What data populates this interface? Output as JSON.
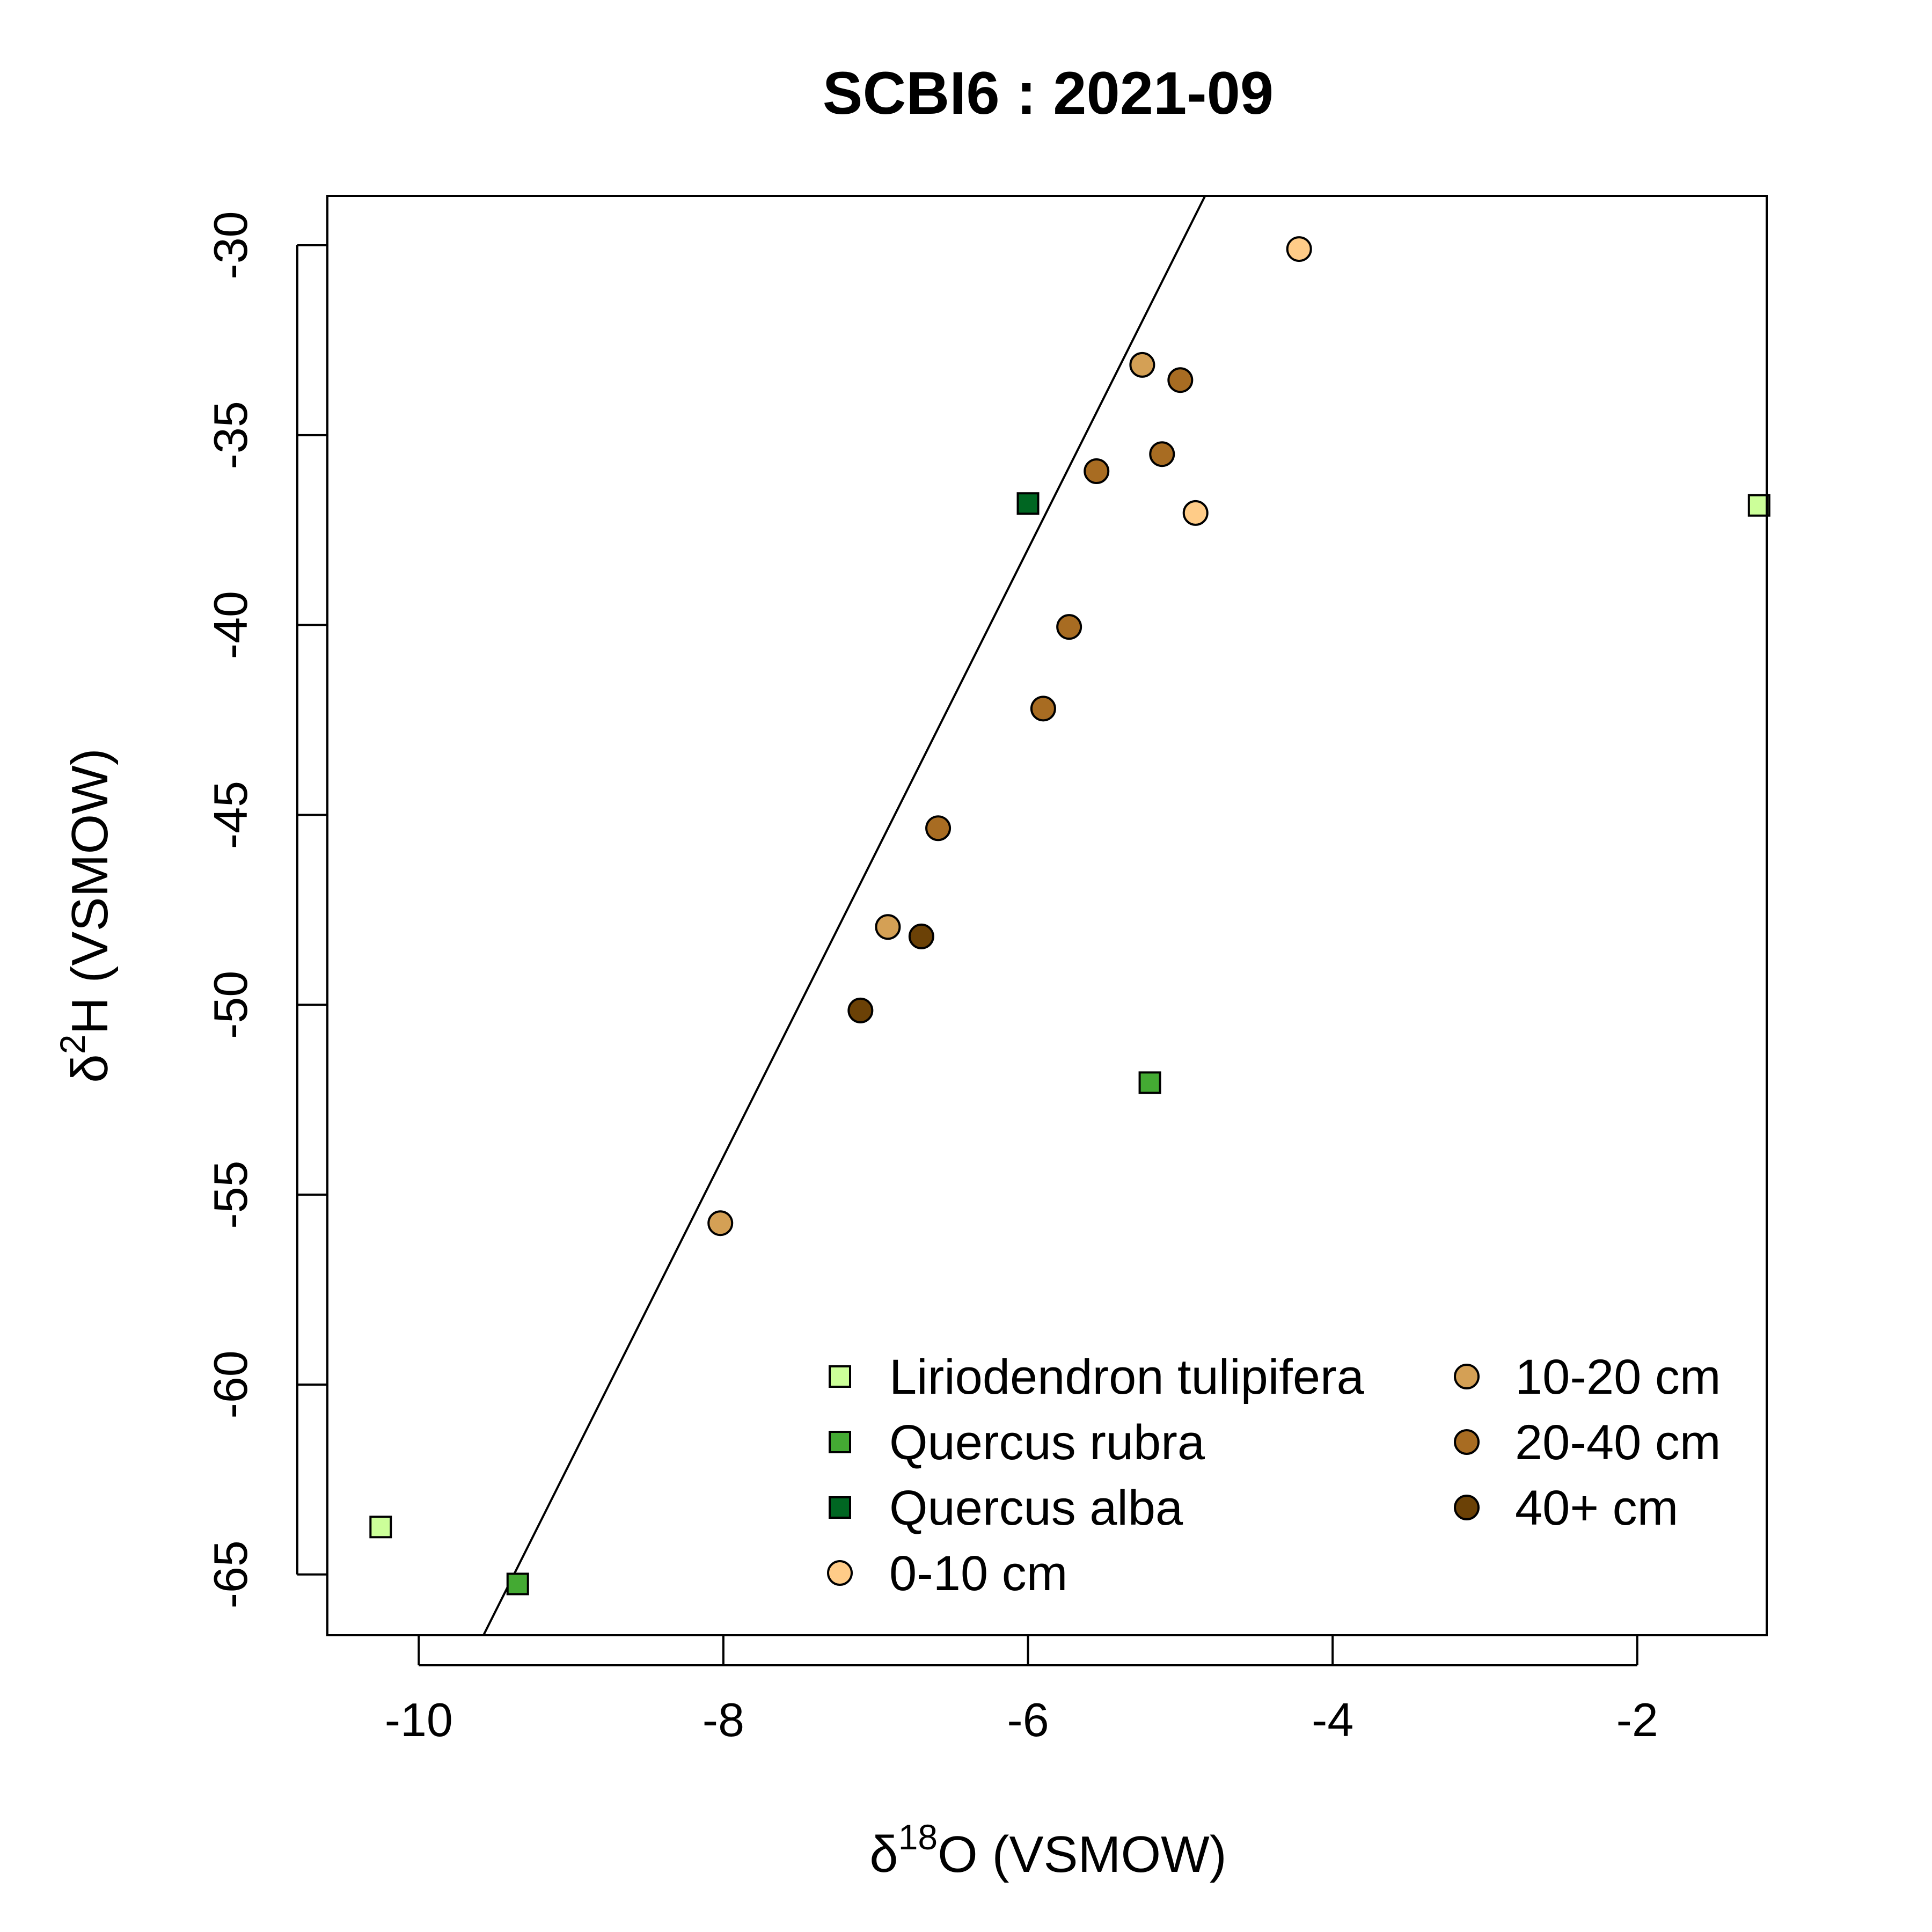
{
  "chart_data": {
    "type": "scatter",
    "title": "SCBI6 : 2021-09",
    "xlabel": {
      "prefix": "δ",
      "sup": "18",
      "rest": "O (VSMOW)"
    },
    "ylabel": {
      "prefix": "δ",
      "sup": "2",
      "rest": "H (VSMOW)"
    },
    "xlim": [
      -10.6,
      -1.15
    ],
    "ylim": [
      -66.6,
      -28.7
    ],
    "xticks": [
      -10,
      -8,
      -6,
      -4,
      -2
    ],
    "yticks": [
      -30,
      -35,
      -40,
      -45,
      -50,
      -55,
      -60,
      -65
    ],
    "grid": false,
    "legend_position": "bottom-right",
    "reference_line": {
      "slope": 8,
      "intercept": 10
    },
    "series": [
      {
        "name": "Liriodendron tulipifera",
        "shape": "square",
        "color": "#ccff99",
        "points": [
          [
            -10.25,
            -63.75
          ],
          [
            -1.2,
            -36.85
          ]
        ]
      },
      {
        "name": "Quercus rubra",
        "shape": "square",
        "color": "#44aa33",
        "points": [
          [
            -9.35,
            -65.25
          ],
          [
            -5.2,
            -52.05
          ]
        ]
      },
      {
        "name": "Quercus alba",
        "shape": "square",
        "color": "#006622",
        "points": [
          [
            -6.0,
            -36.8
          ]
        ]
      },
      {
        "name": "0-10 cm",
        "shape": "circle",
        "color": "#ffcc88",
        "points": [
          [
            -4.22,
            -30.1
          ],
          [
            -4.9,
            -37.05
          ]
        ]
      },
      {
        "name": "10-20 cm",
        "shape": "circle",
        "color": "#d4a055",
        "points": [
          [
            -5.25,
            -33.15
          ],
          [
            -6.92,
            -47.95
          ],
          [
            -8.02,
            -55.75
          ]
        ]
      },
      {
        "name": "20-40 cm",
        "shape": "circle",
        "color": "#a86c22",
        "points": [
          [
            -5.0,
            -33.55
          ],
          [
            -5.12,
            -35.5
          ],
          [
            -5.55,
            -35.95
          ],
          [
            -5.73,
            -40.05
          ],
          [
            -5.9,
            -42.2
          ],
          [
            -6.59,
            -45.35
          ]
        ]
      },
      {
        "name": "40+ cm",
        "shape": "circle",
        "color": "#6b4106",
        "points": [
          [
            -6.7,
            -48.2
          ],
          [
            -7.1,
            -50.15
          ]
        ]
      }
    ]
  }
}
